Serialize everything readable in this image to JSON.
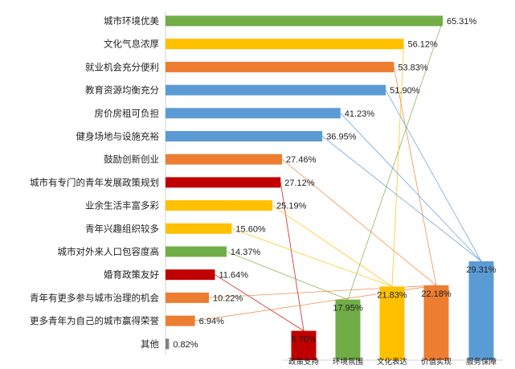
{
  "chart_data": [
    {
      "type": "bar",
      "orientation": "horizontal",
      "categories": [
        "城市环境优美",
        "文化气息浓厚",
        "就业机会充分便利",
        "教育资源均衡充分",
        "房价房租可负担",
        "健身场地与设施充裕",
        "鼓励创新创业",
        "城市有专门的青年发展政策规划",
        "业余生活丰富多彩",
        "青年兴趣组织较多",
        "城市对外来人口包容度高",
        "婚育政策友好",
        "青年有更多参与城市治理的机会",
        "更多青年为自己的城市赢得荣誉",
        "其他"
      ],
      "values": [
        65.31,
        56.12,
        53.83,
        51.9,
        41.23,
        36.95,
        27.46,
        27.12,
        25.19,
        15.6,
        14.37,
        11.64,
        10.22,
        6.94,
        0.82
      ],
      "value_labels": [
        "65.31%",
        "56.12%",
        "53.83%",
        "51.90%",
        "41.23%",
        "36.95%",
        "27.46%",
        "27.12%",
        "25.19%",
        "15.60%",
        "14.37%",
        "11.64%",
        "10.22%",
        "6.94%",
        "0.82%"
      ],
      "groups": [
        "环境氛围",
        "文化表达",
        "价值实现",
        "服务保障",
        "服务保障",
        "服务保障",
        "价值实现",
        "政策支持",
        "文化表达",
        "文化表达",
        "环境氛围",
        "政策支持",
        "价值实现",
        "价值实现",
        "其他"
      ],
      "xlim": [
        0,
        70
      ]
    },
    {
      "type": "bar",
      "orientation": "vertical",
      "categories": [
        "政策支持",
        "环境氛围",
        "文化表达",
        "价值实现",
        "服务保障"
      ],
      "values": [
        8.7,
        17.95,
        21.83,
        22.18,
        29.31
      ],
      "value_labels": [
        "8.70%",
        "17.95%",
        "21.83%",
        "22.18%",
        "29.31%"
      ],
      "ylim": [
        0,
        35
      ]
    }
  ],
  "colors": {
    "政策支持": "#c00000",
    "环境氛围": "#70ad47",
    "文化表达": "#ffc000",
    "价值实现": "#ed7d31",
    "服务保障": "#5b9bd5",
    "其他": "#808080"
  }
}
